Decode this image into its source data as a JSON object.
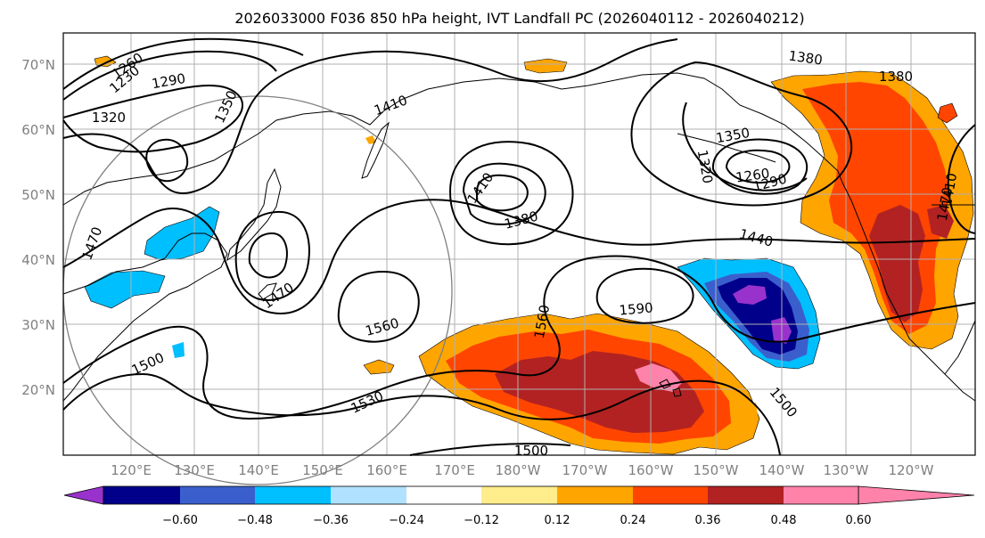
{
  "title": "2026033000 F036 850 hPa height, IVT Landfall PC (2026040112 - 2026040212)",
  "lat_ticks": [
    "70°N",
    "60°N",
    "50°N",
    "40°N",
    "30°N",
    "20°N"
  ],
  "lon_ticks": [
    "120°E",
    "130°E",
    "140°E",
    "150°E",
    "160°E",
    "170°E",
    "180°W",
    "170°W",
    "160°W",
    "150°W",
    "140°W",
    "130°W",
    "120°W"
  ],
  "colorbar": {
    "levels": [
      "−0.60",
      "−0.48",
      "−0.36",
      "−0.24",
      "−0.12",
      "0.12",
      "0.24",
      "0.36",
      "0.48",
      "0.60"
    ],
    "colors": [
      "#9932cc",
      "#00008b",
      "#3a5fcd",
      "#00bfff",
      "#b0e2ff",
      "#ffffff",
      "#ffec8b",
      "#ffa500",
      "#ff4500",
      "#b22222",
      "#ff82ab"
    ]
  },
  "contour_labels": [
    "1230",
    "1260",
    "1290",
    "1320",
    "1350",
    "1410",
    "1380",
    "1380",
    "1350",
    "1320",
    "1260",
    "1290",
    "1440",
    "1410",
    "1380",
    "1470",
    "1470",
    "1470",
    "1590",
    "1560",
    "1560",
    "1500",
    "1530",
    "1500",
    "1500",
    "1410"
  ]
}
